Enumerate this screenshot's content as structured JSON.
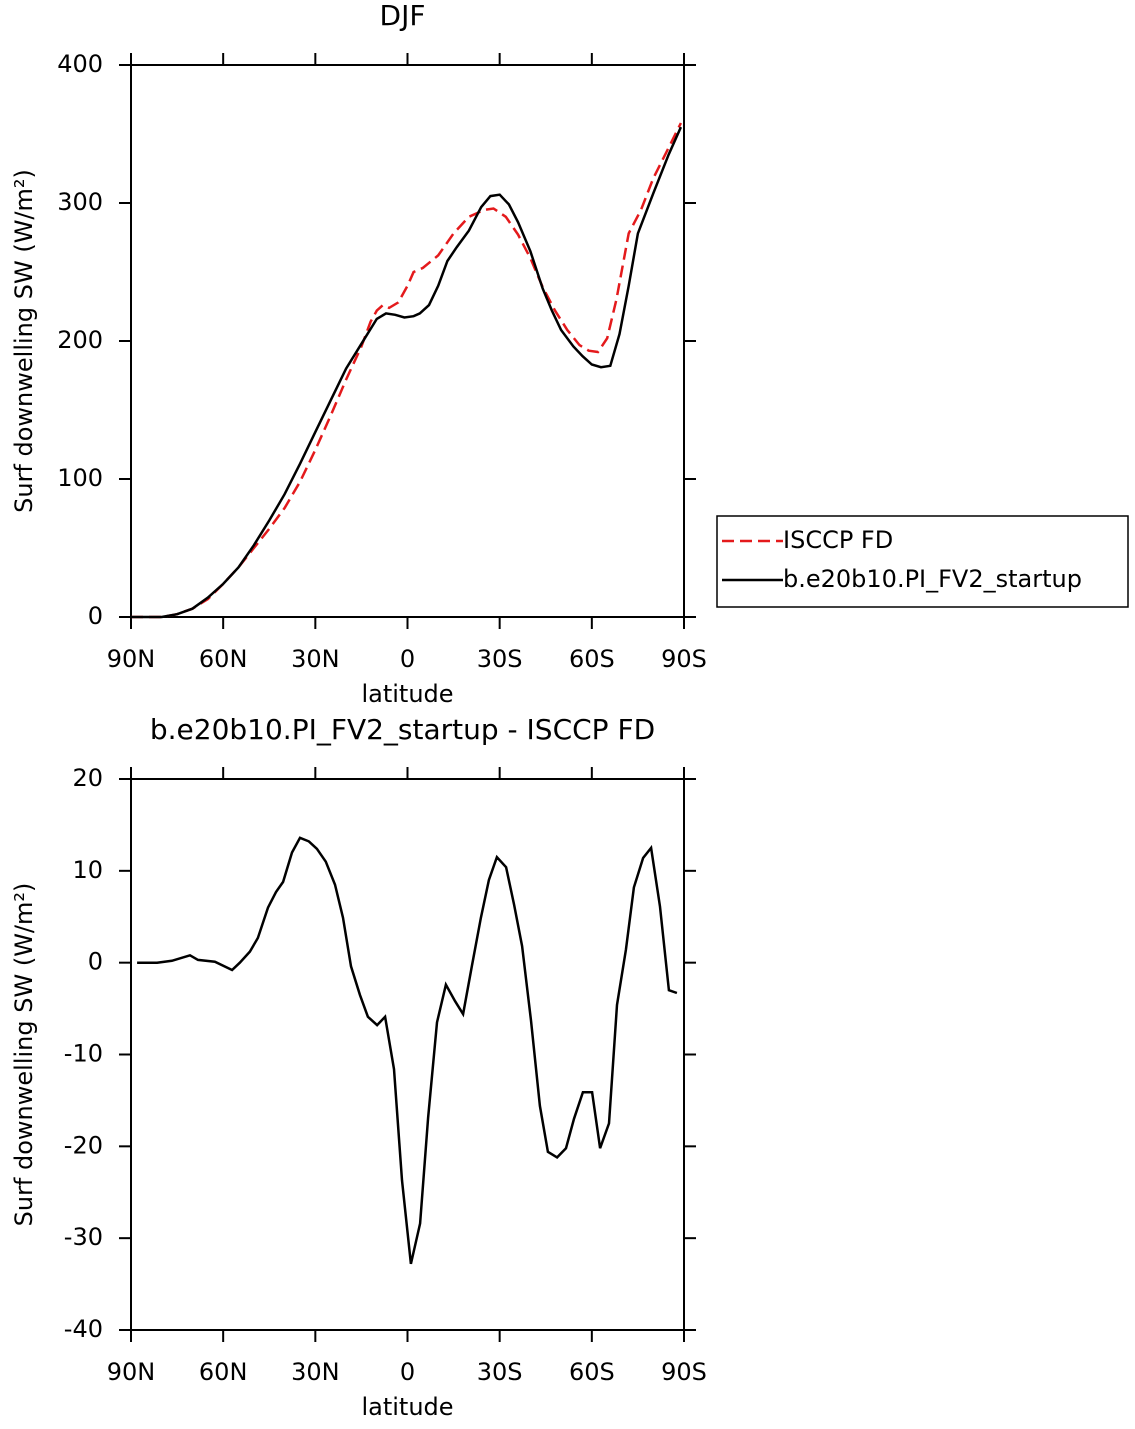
{
  "chart_data": [
    {
      "type": "line",
      "title": "DJF",
      "xlabel": "latitude",
      "ylabel": "Surf downwelling SW (W/m²)",
      "xlim": [
        90,
        -90
      ],
      "xticks": [
        {
          "value": 90,
          "label": "90N"
        },
        {
          "value": 60,
          "label": "60N"
        },
        {
          "value": 30,
          "label": "30N"
        },
        0,
        {
          "value": -30,
          "label": "30S"
        },
        {
          "value": -60,
          "label": "60S"
        },
        {
          "value": -90,
          "label": "90S"
        }
      ],
      "ylim": [
        0,
        400
      ],
      "yticks": [
        0,
        100,
        200,
        300,
        400
      ],
      "legend": "right",
      "series": [
        {
          "name": "ISCCP FD",
          "color": "#e41a1c",
          "linestyle": "dashed",
          "x": [
            90,
            85,
            80,
            75,
            70,
            65,
            60,
            55,
            50,
            45,
            40,
            35,
            30,
            25,
            20,
            15,
            12,
            10,
            8,
            6,
            3,
            0,
            -2,
            -5,
            -10,
            -15,
            -20,
            -25,
            -28,
            -32,
            -36,
            -40,
            -44,
            -48,
            -52,
            -56,
            -59,
            -62,
            -65,
            -68,
            -72,
            -76,
            -80,
            -85,
            -89
          ],
          "values": [
            0,
            0,
            0,
            2,
            6,
            13,
            24,
            36,
            50,
            64,
            79,
            98,
            121,
            146,
            172,
            196,
            214,
            222,
            226,
            224,
            228,
            240,
            250,
            253,
            262,
            278,
            290,
            295,
            296,
            290,
            277,
            260,
            239,
            222,
            208,
            197,
            193,
            192,
            202,
            230,
            278,
            295,
            318,
            340,
            358
          ]
        },
        {
          "name": "b.e20b10.PI_FV2_startup",
          "color": "#000000",
          "linestyle": "solid",
          "x": [
            90,
            85,
            80,
            75,
            70,
            65,
            60,
            55,
            50,
            45,
            40,
            35,
            30,
            25,
            20,
            15,
            10,
            7,
            4,
            1,
            -2,
            -4,
            -7,
            -10,
            -13,
            -16,
            -20,
            -24,
            -27,
            -30,
            -33,
            -36,
            -40,
            -44,
            -47,
            -50,
            -54,
            -57,
            -60,
            -63,
            -66,
            -69,
            -72,
            -75,
            -80,
            -85,
            -89
          ],
          "values": [
            0,
            0,
            0,
            2,
            6,
            14,
            24,
            36,
            52,
            70,
            89,
            111,
            134,
            157,
            180,
            198,
            216,
            220,
            219,
            217,
            218,
            220,
            226,
            240,
            258,
            268,
            280,
            297,
            305,
            306,
            299,
            286,
            265,
            238,
            222,
            208,
            196,
            189,
            183,
            181,
            182,
            205,
            240,
            278,
            307,
            335,
            355
          ]
        }
      ]
    },
    {
      "type": "line",
      "title": "b.e20b10.PI_FV2_startup - ISCCP FD",
      "xlabel": "latitude",
      "ylabel": "Surf downwelling SW (W/m²)",
      "xlim": [
        90,
        -90
      ],
      "xticks": [
        {
          "value": 90,
          "label": "90N"
        },
        {
          "value": 60,
          "label": "60N"
        },
        {
          "value": 30,
          "label": "30N"
        },
        0,
        {
          "value": -30,
          "label": "30S"
        },
        {
          "value": -60,
          "label": "60S"
        },
        {
          "value": -90,
          "label": "90S"
        }
      ],
      "ylim": [
        -40,
        20
      ],
      "yticks": [
        -40,
        -30,
        -20,
        -10,
        0,
        10,
        20
      ],
      "series": [
        {
          "color": "#000000",
          "linestyle": "solid",
          "x": [
            88.0,
            81.5,
            76.7,
            70.8,
            68.2,
            62.7,
            57.1,
            54.6,
            51.3,
            48.7,
            45.4,
            42.8,
            40.5,
            37.6,
            35.0,
            32.1,
            29.5,
            26.6,
            23.6,
            21.0,
            18.4,
            15.5,
            12.9,
            9.9,
            7.3,
            4.4,
            1.8,
            -1.1,
            -4.1,
            -6.7,
            -9.6,
            -12.5,
            -15.5,
            -18.1,
            -21.0,
            -23.9,
            -26.5,
            -29.1,
            -32.1,
            -34.7,
            -37.3,
            -40.2,
            -43.1,
            -45.7,
            -48.7,
            -51.6,
            -54.2,
            -57.1,
            -60.1,
            -62.7,
            -65.6,
            -68.2,
            -71.1,
            -73.7,
            -76.7,
            -79.3,
            -82.2,
            -85.1,
            -87.7
          ],
          "values": [
            0,
            0,
            0.2,
            0.8,
            0.3,
            0.1,
            -0.8,
            0,
            1.2,
            2.7,
            6,
            7.7,
            8.8,
            12,
            13.6,
            13.2,
            12.4,
            11,
            8.5,
            4.9,
            -0.4,
            -3.5,
            -5.9,
            -6.8,
            -5.9,
            -11.6,
            -23.7,
            -32.8,
            -28.4,
            -16.9,
            -6.5,
            -2.4,
            -4.2,
            -5.6,
            -0.3,
            4.9,
            9,
            11.5,
            10.4,
            6.3,
            1.8,
            -6.3,
            -15.6,
            -20.6,
            -21.2,
            -20.2,
            -17,
            -14.1,
            -14.1,
            -20.2,
            -17.5,
            -4.6,
            1.4,
            8.2,
            11.4,
            12.5,
            6.1,
            -3,
            -3.3
          ]
        }
      ]
    }
  ]
}
